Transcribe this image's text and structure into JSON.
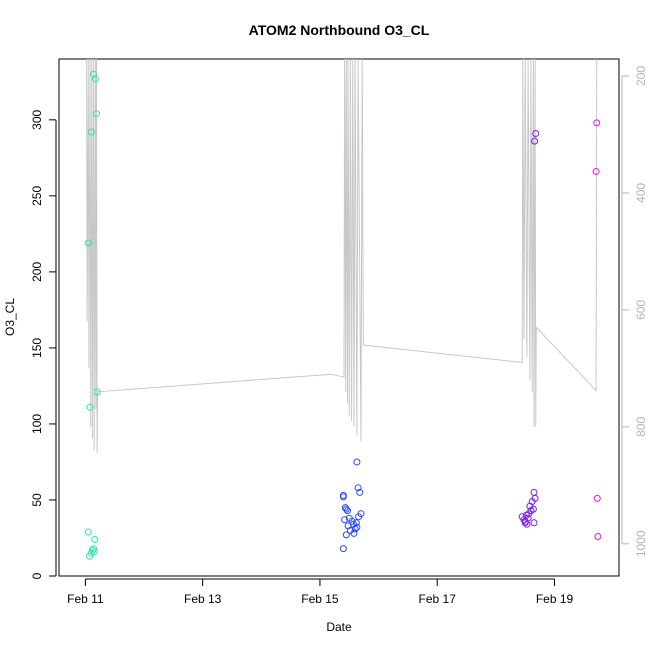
{
  "chart_data": {
    "type": "scatter",
    "title": "ATOM2 Northbound O3_CL",
    "xlabel": "Date",
    "ylabel": "O3_CL",
    "x_unit": "day of February",
    "xlim": [
      10.55,
      20.1
    ],
    "ylim": [
      0,
      340
    ],
    "x_ticks": [
      {
        "value": 11,
        "label": "Feb 11"
      },
      {
        "value": 13,
        "label": "Feb 13"
      },
      {
        "value": 15,
        "label": "Feb 15"
      },
      {
        "value": 17,
        "label": "Feb 17"
      },
      {
        "value": 19,
        "label": "Feb 19"
      }
    ],
    "y_ticks": [
      0,
      50,
      100,
      150,
      200,
      250,
      300
    ],
    "right_axis": {
      "ticks": [
        200,
        400,
        600,
        800,
        1000
      ],
      "inverted": true,
      "range": [
        171,
        1055
      ],
      "color": "#b4b4b4"
    },
    "points": [
      {
        "x": 11.05,
        "y": 219,
        "color": "#2ee6a8"
      },
      {
        "x": 11.1,
        "y": 292,
        "color": "#2ee6a8"
      },
      {
        "x": 11.14,
        "y": 330,
        "color": "#2ee6a8"
      },
      {
        "x": 11.17,
        "y": 327,
        "color": "#2ee6a8"
      },
      {
        "x": 11.19,
        "y": 304,
        "color": "#2ee6a8"
      },
      {
        "x": 11.2,
        "y": 121,
        "color": "#2ee6a8"
      },
      {
        "x": 11.08,
        "y": 111,
        "color": "#2ee6a8"
      },
      {
        "x": 11.05,
        "y": 29,
        "color": "#2ee6a8"
      },
      {
        "x": 11.16,
        "y": 24,
        "color": "#2ee6a8"
      },
      {
        "x": 11.14,
        "y": 18,
        "color": "#2ee6a8"
      },
      {
        "x": 11.12,
        "y": 17,
        "color": "#2ee6a8"
      },
      {
        "x": 11.1,
        "y": 15,
        "color": "#2ee6a8"
      },
      {
        "x": 11.07,
        "y": 13,
        "color": "#2ee6a8"
      },
      {
        "x": 11.15,
        "y": 16,
        "color": "#2ee6a8"
      },
      {
        "x": 15.4,
        "y": 53,
        "color": "#2a4cf0"
      },
      {
        "x": 15.4,
        "y": 52,
        "color": "#2a4cf0"
      },
      {
        "x": 15.43,
        "y": 45,
        "color": "#2a4cf0"
      },
      {
        "x": 15.45,
        "y": 44,
        "color": "#2a4cf0"
      },
      {
        "x": 15.47,
        "y": 43,
        "color": "#2a4cf0"
      },
      {
        "x": 15.42,
        "y": 37,
        "color": "#2a4cf0"
      },
      {
        "x": 15.5,
        "y": 38,
        "color": "#2a4cf0"
      },
      {
        "x": 15.48,
        "y": 33,
        "color": "#2a4cf0"
      },
      {
        "x": 15.52,
        "y": 30,
        "color": "#2a4cf0"
      },
      {
        "x": 15.45,
        "y": 27,
        "color": "#2a4cf0"
      },
      {
        "x": 15.4,
        "y": 18,
        "color": "#2a4cf0"
      },
      {
        "x": 15.55,
        "y": 36,
        "color": "#2a4cf0"
      },
      {
        "x": 15.57,
        "y": 34,
        "color": "#2a4cf0"
      },
      {
        "x": 15.58,
        "y": 28,
        "color": "#2a4cf0"
      },
      {
        "x": 15.6,
        "y": 31,
        "color": "#2a4cf0"
      },
      {
        "x": 15.62,
        "y": 35,
        "color": "#2a4cf0"
      },
      {
        "x": 15.63,
        "y": 32,
        "color": "#2a4cf0"
      },
      {
        "x": 15.66,
        "y": 39,
        "color": "#2a4cf0"
      },
      {
        "x": 15.7,
        "y": 41,
        "color": "#2a4cf0"
      },
      {
        "x": 15.68,
        "y": 55,
        "color": "#2a4cf0"
      },
      {
        "x": 15.65,
        "y": 58,
        "color": "#2a4cf0"
      },
      {
        "x": 15.63,
        "y": 75,
        "color": "#2a4cf0"
      },
      {
        "x": 18.45,
        "y": 39,
        "color": "#7a1fe6"
      },
      {
        "x": 18.48,
        "y": 37,
        "color": "#7a1fe6"
      },
      {
        "x": 18.5,
        "y": 35,
        "color": "#7a1fe6"
      },
      {
        "x": 18.52,
        "y": 40,
        "color": "#7a1fe6"
      },
      {
        "x": 18.53,
        "y": 34,
        "color": "#7a1fe6"
      },
      {
        "x": 18.55,
        "y": 38,
        "color": "#7a1fe6"
      },
      {
        "x": 18.56,
        "y": 41,
        "color": "#7a1fe6"
      },
      {
        "x": 18.58,
        "y": 46,
        "color": "#7a1fe6"
      },
      {
        "x": 18.6,
        "y": 43,
        "color": "#7a1fe6"
      },
      {
        "x": 18.62,
        "y": 49,
        "color": "#7a1fe6"
      },
      {
        "x": 18.64,
        "y": 44,
        "color": "#7a1fe6"
      },
      {
        "x": 18.65,
        "y": 55,
        "color": "#7a1fe6"
      },
      {
        "x": 18.67,
        "y": 51,
        "color": "#7a1fe6"
      },
      {
        "x": 18.65,
        "y": 35,
        "color": "#7a1fe6"
      },
      {
        "x": 18.5,
        "y": 36,
        "color": "#7a1fe6"
      },
      {
        "x": 18.66,
        "y": 286,
        "color": "#7a1fe6"
      },
      {
        "x": 18.68,
        "y": 291,
        "color": "#7a1fe6"
      },
      {
        "x": 19.72,
        "y": 298,
        "color": "#d31fe6"
      },
      {
        "x": 19.71,
        "y": 266,
        "color": "#d31fe6"
      },
      {
        "x": 19.73,
        "y": 51,
        "color": "#d31fe6"
      },
      {
        "x": 19.74,
        "y": 26,
        "color": "#d31fe6"
      }
    ],
    "pressure_path": [
      [
        11.02,
        170
      ],
      [
        11.03,
        620
      ],
      [
        11.05,
        170
      ],
      [
        11.06,
        700
      ],
      [
        11.08,
        170
      ],
      [
        11.09,
        800
      ],
      [
        11.11,
        170
      ],
      [
        11.12,
        820
      ],
      [
        11.14,
        170
      ],
      [
        11.15,
        840
      ],
      [
        11.17,
        170
      ],
      [
        11.18,
        770
      ],
      [
        11.19,
        170
      ],
      [
        11.2,
        845
      ],
      [
        11.21,
        740
      ],
      [
        15.2,
        710
      ],
      [
        15.41,
        715
      ],
      [
        15.42,
        170
      ],
      [
        15.44,
        740
      ],
      [
        15.45,
        170
      ],
      [
        15.47,
        760
      ],
      [
        15.48,
        170
      ],
      [
        15.5,
        780
      ],
      [
        15.52,
        170
      ],
      [
        15.54,
        790
      ],
      [
        15.56,
        170
      ],
      [
        15.58,
        800
      ],
      [
        15.6,
        170
      ],
      [
        15.63,
        815
      ],
      [
        15.65,
        170
      ],
      [
        15.7,
        825
      ],
      [
        15.72,
        170
      ],
      [
        15.74,
        660
      ],
      [
        18.45,
        690
      ],
      [
        18.46,
        170
      ],
      [
        18.48,
        650
      ],
      [
        18.5,
        170
      ],
      [
        18.53,
        680
      ],
      [
        18.55,
        170
      ],
      [
        18.58,
        720
      ],
      [
        18.6,
        170
      ],
      [
        18.62,
        740
      ],
      [
        18.64,
        170
      ],
      [
        18.65,
        800
      ],
      [
        18.67,
        170
      ],
      [
        18.68,
        800
      ],
      [
        18.69,
        630
      ],
      [
        19.71,
        738
      ],
      [
        19.72,
        170
      ]
    ]
  }
}
